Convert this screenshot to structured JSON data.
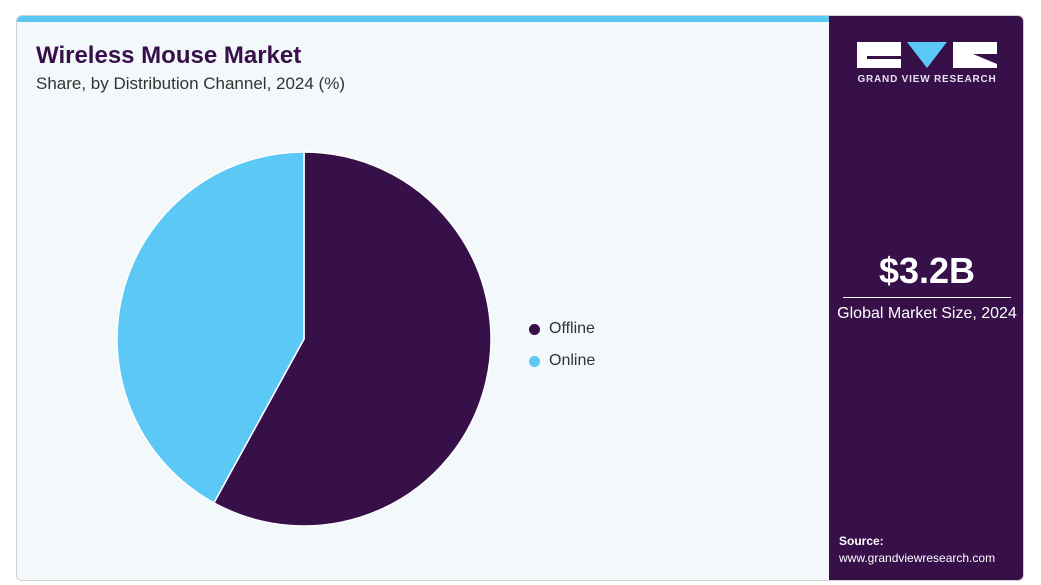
{
  "header": {
    "title": "Wireless Mouse Market",
    "subtitle": "Share, by Distribution Channel, 2024 (%)"
  },
  "brand": {
    "logo_text": "GRAND VIEW RESEARCH"
  },
  "side": {
    "market_size": "$3.2B",
    "market_size_label": "Global Market Size, 2024",
    "source_label": "Source:",
    "source_url": "www.grandviewresearch.com"
  },
  "colors": {
    "offline": "#37104a",
    "online": "#5bc8f5"
  },
  "chart_data": {
    "type": "pie",
    "title": "Wireless Mouse Market",
    "subtitle": "Share, by Distribution Channel, 2024 (%)",
    "categories": [
      "Offline",
      "Online"
    ],
    "values": [
      58,
      42
    ],
    "legend": "right"
  }
}
